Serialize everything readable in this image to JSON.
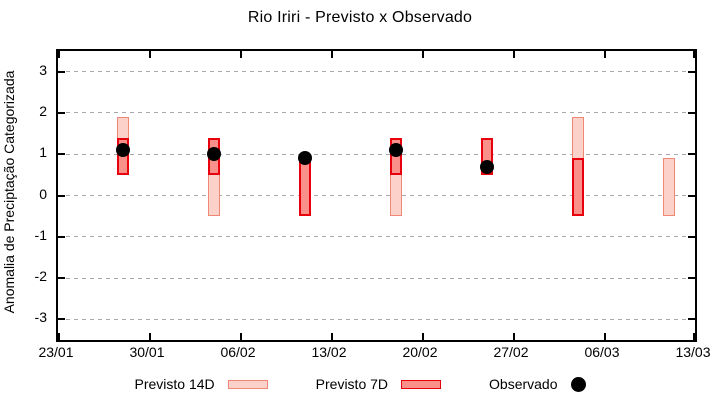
{
  "title": "Rio Iriri - Previsto x Observado",
  "legend": {
    "items": [
      {
        "label": "Previsto 14D",
        "type": "box",
        "fill": "#fbd1ca",
        "border": "#f08876"
      },
      {
        "label": "Previsto 7D",
        "type": "box",
        "fill": "#fa908a",
        "border": "#e8000d"
      },
      {
        "label": "Observado",
        "type": "dot",
        "fill": "#000000"
      }
    ]
  },
  "chart_data": {
    "type": "bar",
    "subtype": "floating-range-bars-with-scatter-overlay",
    "title": "Rio Iriri - Previsto x Observado",
    "xlabel": "",
    "ylabel": "Anomalia de Preciptação Categorizada",
    "ylim": [
      -3.5,
      3.5
    ],
    "yticks": [
      3,
      2,
      1,
      0,
      -1,
      -2,
      -3
    ],
    "grid": {
      "horizontal": true,
      "vertical": false,
      "style": "dashed",
      "color": "#a8a8a8"
    },
    "legend_position": "bottom",
    "x_axis": {
      "tick_labels": [
        "23/01",
        "30/01",
        "06/02",
        "13/02",
        "20/02",
        "27/02",
        "06/03",
        "13/03"
      ],
      "tick_days": [
        0,
        7,
        14,
        21,
        28,
        35,
        42,
        49
      ],
      "span_days": 49
    },
    "categories": [
      "28/01",
      "04/02",
      "11/02",
      "18/02",
      "25/02",
      "04/03",
      "11/03"
    ],
    "category_days": [
      5,
      12,
      19,
      26,
      33,
      40,
      47
    ],
    "series": [
      {
        "name": "Previsto 14D",
        "type": "range-bar",
        "fill": "#fbd1ca",
        "border": "#f08876",
        "ranges": [
          [
            0.5,
            1.9
          ],
          [
            -0.5,
            1.4
          ],
          null,
          [
            -0.5,
            1.4
          ],
          null,
          [
            -0.5,
            1.9
          ],
          [
            -0.5,
            0.9
          ]
        ]
      },
      {
        "name": "Previsto 7D",
        "type": "range-bar",
        "fill": "#fa908a",
        "border": "#e8000d",
        "ranges": [
          [
            0.5,
            1.4
          ],
          [
            0.5,
            1.4
          ],
          [
            -0.5,
            0.8
          ],
          [
            0.5,
            1.4
          ],
          [
            0.5,
            1.4
          ],
          [
            -0.5,
            0.9
          ],
          null
        ]
      },
      {
        "name": "Observado",
        "type": "scatter",
        "color": "#000000",
        "values": [
          1.1,
          1.0,
          0.9,
          1.1,
          0.7,
          null,
          null
        ]
      }
    ]
  }
}
